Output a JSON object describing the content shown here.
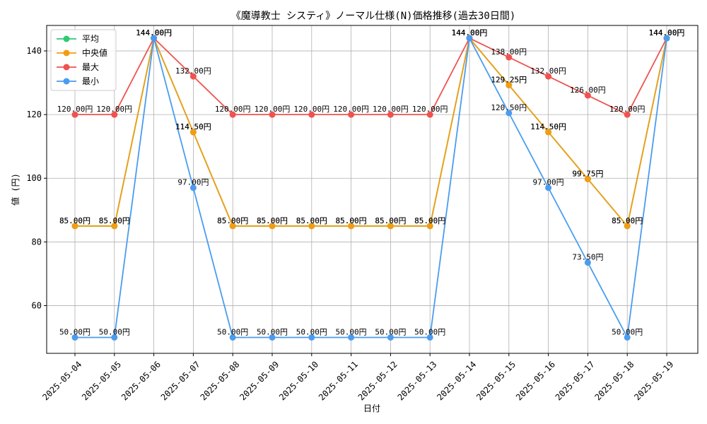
{
  "chart_data": {
    "type": "line",
    "title": "《魔導教士 システィ》ノーマル仕様(N)価格推移(過去30日間)",
    "xlabel": "日付",
    "ylabel": "値 (円)",
    "categories": [
      "2025-05-04",
      "2025-05-05",
      "2025-05-06",
      "2025-05-07",
      "2025-05-08",
      "2025-05-09",
      "2025-05-10",
      "2025-05-11",
      "2025-05-12",
      "2025-05-13",
      "2025-05-14",
      "2025-05-15",
      "2025-05-16",
      "2025-05-17",
      "2025-05-18",
      "2025-05-19"
    ],
    "ylim": [
      45,
      148
    ],
    "yticks": [
      60,
      80,
      100,
      120,
      140
    ],
    "grid": true,
    "legend_position": "top-left",
    "value_suffix": "円",
    "series": [
      {
        "name": "平均",
        "color": "#2ecc71",
        "values": [
          85.0,
          85.0,
          144.0,
          114.5,
          85.0,
          85.0,
          85.0,
          85.0,
          85.0,
          85.0,
          144.0,
          129.25,
          114.5,
          99.75,
          85.0,
          144.0
        ]
      },
      {
        "name": "中央値",
        "color": "#f39c12",
        "values": [
          85.0,
          85.0,
          144.0,
          114.5,
          85.0,
          85.0,
          85.0,
          85.0,
          85.0,
          85.0,
          144.0,
          129.25,
          114.5,
          99.75,
          85.0,
          144.0
        ]
      },
      {
        "name": "最大",
        "color": "#ef5350",
        "values": [
          120.0,
          120.0,
          144.0,
          132.0,
          120.0,
          120.0,
          120.0,
          120.0,
          120.0,
          120.0,
          144.0,
          138.0,
          132.0,
          126.0,
          120.0,
          144.0
        ]
      },
      {
        "name": "最小",
        "color": "#4a9cf0",
        "values": [
          50.0,
          50.0,
          144.0,
          97.0,
          50.0,
          50.0,
          50.0,
          50.0,
          50.0,
          50.0,
          144.0,
          120.5,
          97.0,
          73.5,
          50.0,
          144.0
        ]
      }
    ]
  }
}
